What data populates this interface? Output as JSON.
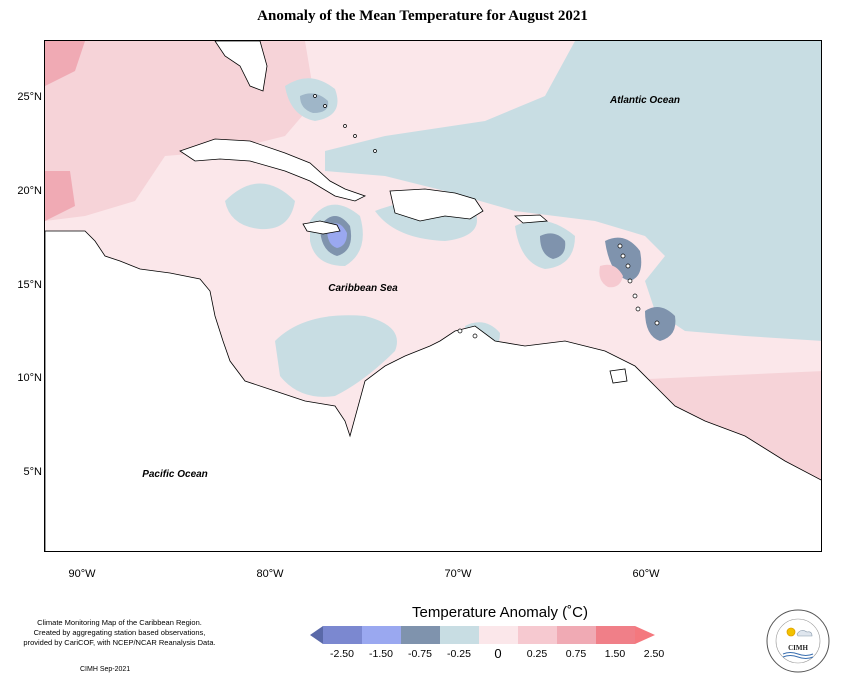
{
  "title": "Anomaly of the Mean Temperature for August 2021",
  "map": {
    "lat_labels": [
      "25°N",
      "20°N",
      "15°N",
      "10°N",
      "5°N"
    ],
    "lon_labels": [
      "90°W",
      "80°W",
      "70°W",
      "60°W"
    ],
    "ocean_labels": {
      "atlantic": "Atlantic Ocean",
      "caribbean": "Caribbean Sea",
      "pacific": "Pacific Ocean"
    }
  },
  "legend": {
    "title": "Temperature Anomaly (˚C)",
    "ticks": [
      "-2.50",
      "-1.50",
      "-0.75",
      "-0.25",
      "0",
      "0.25",
      "0.75",
      "1.50",
      "2.50"
    ],
    "colors": [
      "#5a69a8",
      "#7b88d0",
      "#9aa8f0",
      "#7f93ad",
      "#c8dde3",
      "#fbe7ea",
      "#f6c9d0",
      "#f0aab4",
      "#f07f88",
      "#f4787e"
    ]
  },
  "footer": {
    "note_lines": [
      "Climate Monitoring Map of the Caribbean Region.",
      "Created by aggregating station based observations,",
      "provided by CariCOF, with NCEP/NCAR Reanalysis Data."
    ],
    "credit": "CIMH Sep-2021"
  },
  "logo": {
    "text": "CIMH"
  }
}
